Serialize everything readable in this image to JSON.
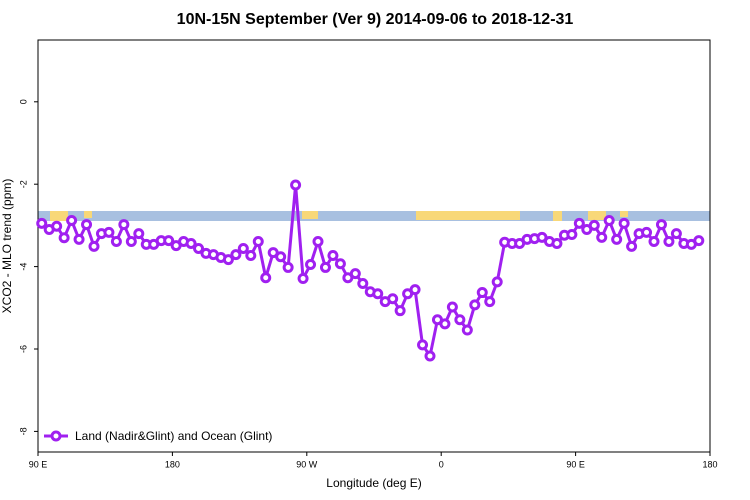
{
  "chart_data": {
    "type": "line",
    "title": "10N-15N September (Ver 9)   2014-09-06 to 2018-12-31",
    "x_label": "Longitude (deg E)",
    "y_label": "XCO2 - MLO trend (ppm)",
    "xlim": [
      90,
      540
    ],
    "ylim": [
      -8.5,
      1.5
    ],
    "xticks": [
      {
        "value": 90,
        "label": "90 E"
      },
      180,
      {
        "value": 270,
        "label": "90 W"
      },
      {
        "value": 360,
        "label": "0"
      },
      {
        "value": 450,
        "label": "90 E"
      },
      {
        "value": 540,
        "label": "180"
      }
    ],
    "yticks": [
      0,
      -2,
      -4,
      -6,
      -8
    ],
    "legend": "bottom-left",
    "x": [
      92.5,
      97.5,
      102.5,
      107.5,
      112.5,
      117.5,
      122.5,
      127.5,
      132.5,
      137.5,
      142.5,
      147.5,
      152.5,
      157.5,
      162.5,
      167.5,
      172.5,
      177.5,
      182.5,
      187.5,
      192.5,
      197.5,
      202.5,
      207.5,
      212.5,
      217.5,
      222.5,
      227.5,
      232.5,
      237.5,
      242.5,
      247.5,
      252.5,
      257.5,
      262.5,
      267.5,
      272.5,
      277.5,
      282.5,
      287.5,
      292.5,
      297.5,
      302.5,
      307.5,
      312.5,
      317.5,
      322.5,
      327.5,
      332.5,
      337.5,
      342.5,
      347.5,
      352.5,
      357.5,
      362.5,
      367.5,
      372.5,
      377.5,
      382.5,
      387.5,
      392.5,
      397.5,
      402.5,
      407.5,
      412.5,
      417.5,
      422.5,
      427.5,
      432.5,
      437.5,
      442.5,
      447.5,
      452.5,
      457.5,
      462.5,
      467.5,
      472.5,
      477.5,
      482.5,
      487.5,
      492.5,
      497.5,
      502.5,
      507.5,
      512.5,
      517.5,
      522.5,
      527.5,
      532.5
    ],
    "series": [
      {
        "name": "Land (Nadir&Glint) and Ocean (Glint)",
        "color": "#a020f0",
        "values": [
          -2.95,
          -3.1,
          -3.02,
          -3.3,
          -2.88,
          -3.34,
          -2.98,
          -3.51,
          -3.2,
          -3.17,
          -3.39,
          -2.98,
          -3.39,
          -3.2,
          -3.46,
          -3.46,
          -3.37,
          -3.37,
          -3.49,
          -3.39,
          -3.44,
          -3.56,
          -3.68,
          -3.71,
          -3.78,
          -3.83,
          -3.71,
          -3.56,
          -3.73,
          -3.39,
          -4.27,
          -3.66,
          -3.76,
          -4.02,
          -2.02,
          -4.29,
          -3.95,
          -3.39,
          -4.02,
          -3.73,
          -3.93,
          -4.27,
          -4.17,
          -4.41,
          -4.61,
          -4.66,
          -4.85,
          -4.78,
          -5.07,
          -4.66,
          -4.56,
          -5.9,
          -6.17,
          -5.29,
          -5.39,
          -4.98,
          -5.29,
          -5.54,
          -4.93,
          -4.63,
          -4.85,
          -4.37,
          -3.41,
          -3.44,
          -3.44,
          -3.34,
          -3.32,
          -3.29,
          -3.39,
          -3.44,
          -3.24,
          -3.22,
          -2.95,
          -3.1,
          -3.0,
          -3.29,
          -2.88,
          -3.34,
          -2.95,
          -3.51,
          -3.2,
          -3.17,
          -3.39,
          -2.98,
          -3.39,
          -3.2,
          -3.44,
          -3.46,
          -3.37
        ]
      }
    ]
  }
}
